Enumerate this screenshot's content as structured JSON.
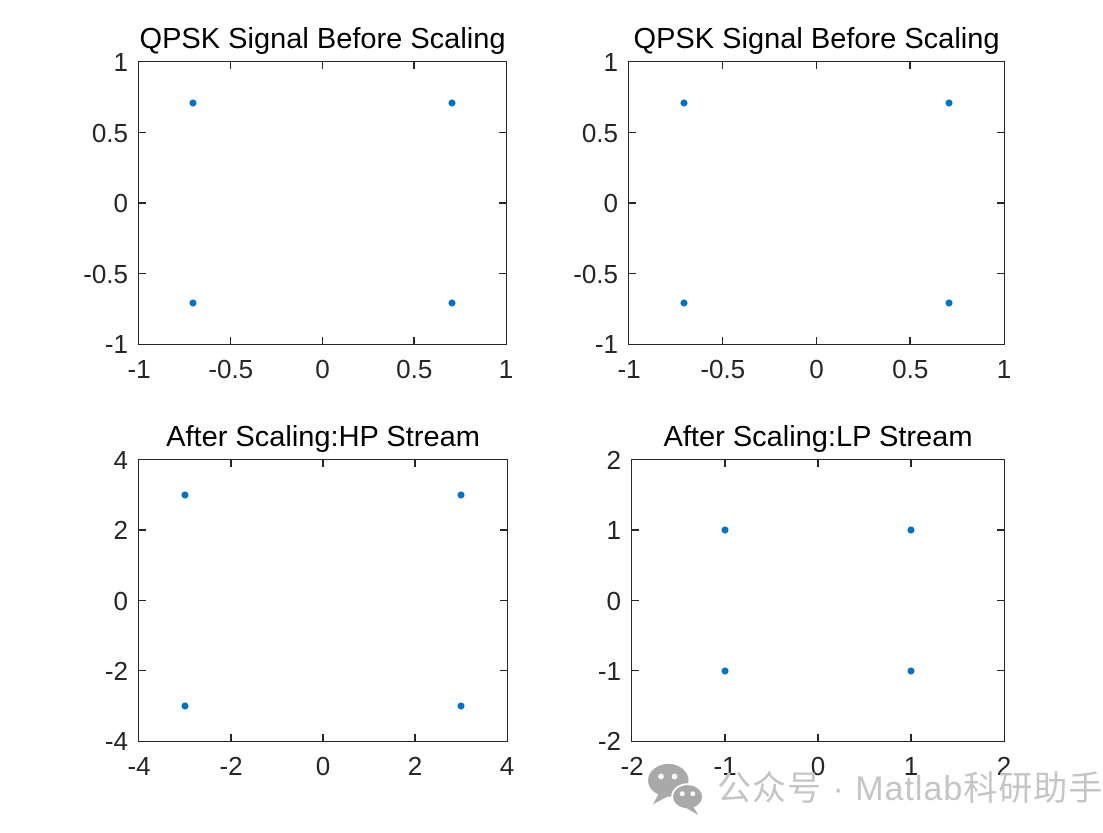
{
  "figure": {
    "background": "#ffffff",
    "axis_color": "#262626",
    "title_color": "#000000"
  },
  "watermark": {
    "icon": "wechat-icon",
    "icon_color": "#a9a9a9",
    "text": "公众号 · Matlab科研助手",
    "text_color": "#c5c5c5"
  },
  "chart_data": [
    {
      "type": "scatter",
      "title": "QPSK Signal Before Scaling",
      "xlabel": "",
      "ylabel": "",
      "xlim": [
        -1,
        1
      ],
      "ylim": [
        -1,
        1
      ],
      "xticks": [
        -1,
        -0.5,
        0,
        0.5,
        1
      ],
      "xtick_labels": [
        "-1",
        "-0.5",
        "0",
        "0.5",
        "1"
      ],
      "yticks": [
        -1,
        -0.5,
        0,
        0.5,
        1
      ],
      "ytick_labels": [
        "-1",
        "-0.5",
        "0",
        "0.5",
        "1"
      ],
      "points": [
        [
          -0.7071,
          0.7071
        ],
        [
          0.7071,
          0.7071
        ],
        [
          -0.7071,
          -0.7071
        ],
        [
          0.7071,
          -0.7071
        ]
      ],
      "marker": "filled-circle",
      "marker_color": "#0072BD",
      "grid": false,
      "box": true
    },
    {
      "type": "scatter",
      "title": "QPSK Signal Before Scaling",
      "xlabel": "",
      "ylabel": "",
      "xlim": [
        -1,
        1
      ],
      "ylim": [
        -1,
        1
      ],
      "xticks": [
        -1,
        -0.5,
        0,
        0.5,
        1
      ],
      "xtick_labels": [
        "-1",
        "-0.5",
        "0",
        "0.5",
        "1"
      ],
      "yticks": [
        -1,
        -0.5,
        0,
        0.5,
        1
      ],
      "ytick_labels": [
        "-1",
        "-0.5",
        "0",
        "0.5",
        "1"
      ],
      "points": [
        [
          -0.7071,
          0.7071
        ],
        [
          0.7071,
          0.7071
        ],
        [
          -0.7071,
          -0.7071
        ],
        [
          0.7071,
          -0.7071
        ]
      ],
      "marker": "filled-circle",
      "marker_color": "#0072BD",
      "grid": false,
      "box": true
    },
    {
      "type": "scatter",
      "title": "After Scaling:HP Stream",
      "xlabel": "",
      "ylabel": "",
      "xlim": [
        -4,
        4
      ],
      "ylim": [
        -4,
        4
      ],
      "xticks": [
        -4,
        -2,
        0,
        2,
        4
      ],
      "xtick_labels": [
        "-4",
        "-2",
        "0",
        "2",
        "4"
      ],
      "yticks": [
        -4,
        -2,
        0,
        2,
        4
      ],
      "ytick_labels": [
        "-4",
        "-2",
        "0",
        "2",
        "4"
      ],
      "points": [
        [
          -3,
          3
        ],
        [
          3,
          3
        ],
        [
          -3,
          -3
        ],
        [
          3,
          -3
        ]
      ],
      "marker": "filled-circle",
      "marker_color": "#0072BD",
      "grid": false,
      "box": true
    },
    {
      "type": "scatter",
      "title": "After Scaling:LP Stream",
      "xlabel": "",
      "ylabel": "",
      "xlim": [
        -2,
        2
      ],
      "ylim": [
        -2,
        2
      ],
      "xticks": [
        -2,
        -1,
        0,
        1,
        2
      ],
      "xtick_labels": [
        "-2",
        "-1",
        "0",
        "1",
        "2"
      ],
      "yticks": [
        -2,
        -1,
        0,
        1,
        2
      ],
      "ytick_labels": [
        "-2",
        "-1",
        "0",
        "1",
        "2"
      ],
      "points": [
        [
          -1,
          1
        ],
        [
          1,
          1
        ],
        [
          -1,
          -1
        ],
        [
          1,
          -1
        ]
      ],
      "marker": "filled-circle",
      "marker_color": "#0072BD",
      "grid": false,
      "box": true
    }
  ]
}
